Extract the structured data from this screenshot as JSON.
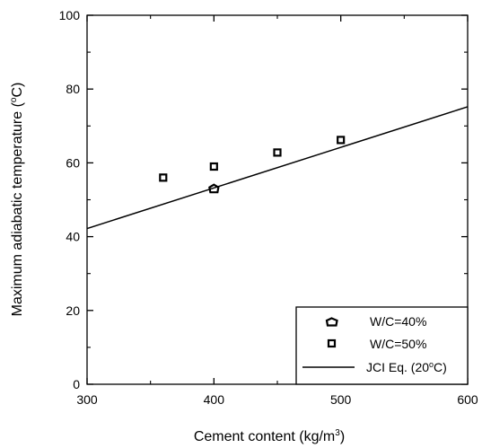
{
  "chart_data": {
    "type": "scatter",
    "xlabel": "Cement content (kg/m3)",
    "xlabel_parts": [
      "Cement content (kg/m",
      "3",
      ")"
    ],
    "ylabel": "Maximum adiabatic temperature (oC)",
    "ylabel_parts": [
      "Maximum adiabatic temperature (",
      "o",
      "C)"
    ],
    "xlim": [
      300,
      600
    ],
    "ylim": [
      0,
      100
    ],
    "x_ticks": [
      300,
      400,
      500,
      600
    ],
    "y_ticks": [
      0,
      20,
      40,
      60,
      80,
      100
    ],
    "grid": false,
    "legend_position": "bottom-right",
    "series": [
      {
        "name": "W/C=40%",
        "marker": "circle",
        "points": [
          {
            "x": 400,
            "y": 53
          }
        ]
      },
      {
        "name": "W/C=50%",
        "marker": "square",
        "points": [
          {
            "x": 360,
            "y": 56
          },
          {
            "x": 400,
            "y": 59
          },
          {
            "x": 450,
            "y": 62.8
          },
          {
            "x": 500,
            "y": 66.2
          }
        ]
      },
      {
        "name": "JCI Eq. (20oC)",
        "name_parts": [
          "JCI Eq. (20",
          "o",
          "C)"
        ],
        "marker": "line",
        "line": [
          {
            "x": 300,
            "y": 42.2
          },
          {
            "x": 600,
            "y": 75.2
          }
        ]
      }
    ]
  }
}
